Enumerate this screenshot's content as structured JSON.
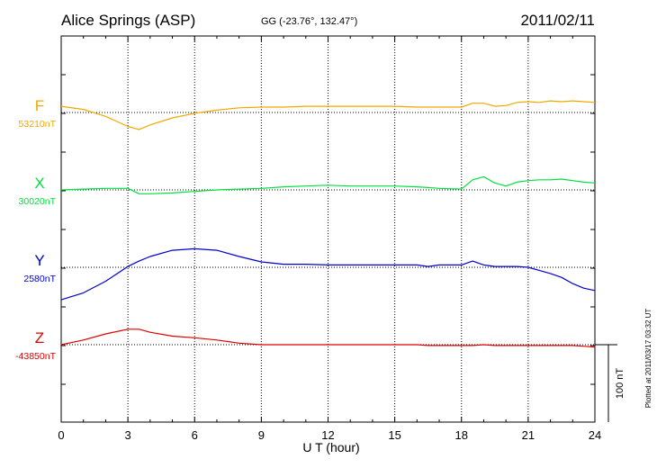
{
  "header": {
    "station": "Alice Springs (ASP)",
    "coords": "GG (-23.76°, 132.47°)",
    "date": "2011/02/11"
  },
  "footer": {
    "xlabel": "U T (hour)",
    "scale_label": "100 nT",
    "plotted_note": "Plotted at 2011/03/17 03:32 UT"
  },
  "chart_data": {
    "type": "line",
    "title": "Alice Springs (ASP)",
    "xlabel": "U T (hour)",
    "ylabel": "",
    "xlim": [
      0,
      24
    ],
    "x_ticks": [
      "0",
      "3",
      "6",
      "9",
      "12",
      "15",
      "18",
      "21",
      "24"
    ],
    "grid": true,
    "scale_bar_nT": 100,
    "x": [
      0,
      1,
      2,
      3,
      3.5,
      4,
      5,
      6,
      7,
      8,
      9,
      10,
      11,
      12,
      13,
      14,
      15,
      16,
      16.5,
      17,
      18,
      18.5,
      19,
      19.5,
      20,
      20.5,
      21,
      21.5,
      22,
      22.5,
      23,
      23.5,
      24
    ],
    "series": [
      {
        "name": "F",
        "baseline_label": "53210nT",
        "baseline": 53210,
        "color": "#f0a800",
        "values": [
          53218,
          53214,
          53205,
          53192,
          53188,
          53194,
          53203,
          53209,
          53213,
          53216,
          53217,
          53217,
          53218,
          53218,
          53218,
          53218,
          53218,
          53217,
          53217,
          53217,
          53217,
          53222,
          53222,
          53218,
          53219,
          53223,
          53224,
          53223,
          53225,
          53224,
          53225,
          53224,
          53223
        ]
      },
      {
        "name": "X",
        "baseline_label": "30020nT",
        "baseline": 30020,
        "color": "#00e040",
        "values": [
          30020,
          30021,
          30022,
          30022,
          30015,
          30015,
          30016,
          30018,
          30020,
          30021,
          30022,
          30024,
          30025,
          30026,
          30025,
          30025,
          30025,
          30024,
          30023,
          30022,
          30021,
          30033,
          30037,
          30029,
          30025,
          30030,
          30032,
          30033,
          30033,
          30034,
          30032,
          30030,
          30029
        ]
      },
      {
        "name": "Y",
        "baseline_label": "2580nT",
        "baseline": 2580,
        "color": "#0000cc",
        "values": [
          2538,
          2547,
          2562,
          2581,
          2588,
          2594,
          2602,
          2604,
          2602,
          2594,
          2587,
          2584,
          2584,
          2583,
          2583,
          2583,
          2583,
          2583,
          2581,
          2583,
          2583,
          2588,
          2583,
          2581,
          2581,
          2581,
          2580,
          2576,
          2572,
          2567,
          2559,
          2553,
          2550
        ]
      },
      {
        "name": "Z",
        "baseline_label": "-43850nT",
        "baseline": -43850,
        "color": "#e00000",
        "values": [
          -43850,
          -43844,
          -43836,
          -43830,
          -43830,
          -43834,
          -43839,
          -43841,
          -43844,
          -43848,
          -43850,
          -43850,
          -43850,
          -43850,
          -43850,
          -43850,
          -43850,
          -43850,
          -43851,
          -43851,
          -43851,
          -43851,
          -43850,
          -43851,
          -43851,
          -43851,
          -43851,
          -43851,
          -43851,
          -43851,
          -43851,
          -43852,
          -43853
        ]
      }
    ]
  }
}
